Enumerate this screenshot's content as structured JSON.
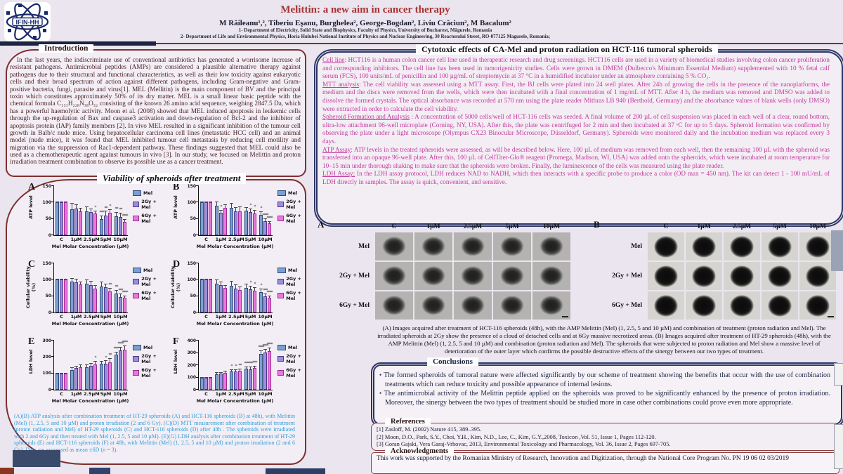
{
  "header": {
    "logo_text": "IFIN-HH",
    "title": "Melittin: a new aim in cancer therapy",
    "authors": "M Răileanu¹,², Tiberiu Eşanu, Burghelea², George-Bogdan², Liviu Crăciun², M Bacalum²",
    "affiliation1": "1- Department of Electricity, Solid State and Biophysics, Faculty of Physics, University of Bucharest, Măgurele, Romania",
    "affiliation2": "2- Department of Life and Environmental Physics, Horia Hulubei National Institute of Physics and Nuclear Engineering, 30 Reactorului Street, RO-077125 Magurele, Romania;"
  },
  "introduction": {
    "heading": "Introduction",
    "text": "In the last years, the indiscriminate use of conventional antibiotics has generated a worrisome increase of resistant pathogens. Antimicrobial peptides (AMPs) are considered a plausible alternative therapy against pathogens due to their structural and functional characteristics, as well as their low toxicity against eukaryotic cells and their broad spectrum of action against different pathogens, including Gram-negative and Gram-positive bacteria, fungi, parasite and virus[1]. MEL (Mellitin) is the main component of BV and the principal toxin which constitutes approximately 50% of its dry matter. MEL is a small linear basic peptide with the chemical formula C₁₃₁H₂₂₈N₃₈O₃₂ consisting of the known 26 amino acid sequence, weighing 2847.5 Da, which has a powerful haemolytic activity. Moon et al. (2008) showed that MEL induced apoptosis in leukemic cells through the up-regulation of Bax and caspase3 activation and down-regulation of Bcl-2 and the inhibitor of apoptosis protein (IAP) family members [2]. In vivo MEL resulted in a significant inhibition of the tumour cell growth in Balb/c nude mice. Using hepatocellular carcinoma cell lines (metastatic HCC cell) and an animal model (nude mice), it was found that MEL inhibited tumour cell metastasis by reducing cell motility and migration via the suppression of Rac1-dependent pathway. These findings suggested that MEL could also be used as a chemotherapeutic agent against tumours in vivo [3]. In our study, we focused on Melittin and proton irradiation treatment combination to observe its possible use as a cancer treatment."
  },
  "viability": {
    "heading": "Viability of spheroids after treatment",
    "caption": "(A)(B) ATP analysis after combination treatment of HT-29 spheroids (A) and HCT-116 spheroids (B) at 48h), with Melittin (Mel) (1, 2.5, 5 and 10 µM) and proton irradiation (2 and 6 Gy). (C)(D) MTT measurement after combination of treatment (proton radiation and Mel) of HT-29 spheroids (C) and HCT-116 spheroids (D) after 48h . The spheroids were irradiated with 2 and 6Gy and then treated with Mel (1, 2.5, 5 and 10 µM). (E)(G) LDH analysis after combination treatment of HT-29 spheroids (E) and HCT-116 spheroids (F) at 48h, with Melittin (Mel) (1, 2.5, 5 and 10 µM) and proton irradiation (2 and 6 Gy). Data are expressed as mean ±SD (n = 3)."
  },
  "chart_data": [
    {
      "letter": "A",
      "type": "bar",
      "ylabel": "ATP level",
      "xlabel": "Mel Molar Concentration (µM)",
      "categories": [
        "C",
        "1µM",
        "2.5µM",
        "5µM",
        "10µM"
      ],
      "ylim": [
        0,
        150
      ],
      "yticks": [
        0,
        50,
        100,
        150
      ],
      "series": [
        {
          "name": "Mel",
          "values": [
            100,
            80,
            74,
            50,
            58
          ],
          "err": [
            2,
            19,
            14,
            10,
            13
          ],
          "sig": [
            "",
            "",
            "",
            "***",
            "**"
          ]
        },
        {
          "name": "2Gy + Mel",
          "values": [
            100,
            82,
            70,
            61,
            55
          ],
          "err": [
            2,
            12,
            12,
            13,
            14
          ],
          "sig": [
            "",
            "",
            "",
            "**",
            "**"
          ]
        },
        {
          "name": "6Gy + Mel",
          "values": [
            100,
            74,
            67,
            68,
            41
          ],
          "err": [
            2,
            10,
            9,
            12,
            8
          ],
          "sig": [
            "",
            "",
            "*",
            "*",
            "****"
          ]
        }
      ]
    },
    {
      "letter": "B",
      "type": "bar",
      "ylabel": "ATP level",
      "xlabel": "Mel Molar Concentration (µM)",
      "categories": [
        "C",
        "1µM",
        "2.5µM",
        "5µM",
        "10µM"
      ],
      "ylim": [
        0,
        150
      ],
      "yticks": [
        0,
        50,
        100,
        150
      ],
      "series": [
        {
          "name": "Mel",
          "values": [
            100,
            90,
            83,
            75,
            63
          ],
          "err": [
            2,
            14,
            16,
            10,
            9
          ],
          "sig": [
            "",
            "",
            "",
            "",
            "*"
          ]
        },
        {
          "name": "2Gy + Mel",
          "values": [
            100,
            68,
            74,
            71,
            43
          ],
          "err": [
            2,
            10,
            12,
            10,
            8
          ],
          "sig": [
            "",
            "*",
            "",
            "*",
            "****"
          ]
        },
        {
          "name": "6Gy + Mel",
          "values": [
            100,
            83,
            73,
            66,
            36
          ],
          "err": [
            2,
            12,
            14,
            12,
            8
          ],
          "sig": [
            "",
            "",
            "",
            "*",
            "****"
          ]
        }
      ]
    },
    {
      "letter": "C",
      "type": "bar",
      "ylabel": "Cellular viability (%)",
      "xlabel": "Mel Molar Concentration (µM)",
      "categories": [
        "C",
        "1µM",
        "2.5µM",
        "5µM",
        "10µM"
      ],
      "ylim": [
        0,
        150
      ],
      "yticks": [
        0,
        50,
        100,
        150
      ],
      "series": [
        {
          "name": "Mel",
          "values": [
            100,
            94,
            89,
            80,
            58
          ],
          "err": [
            2,
            12,
            11,
            15,
            10
          ],
          "sig": [
            "",
            "",
            "",
            "",
            "**"
          ]
        },
        {
          "name": "2Gy + Mel",
          "values": [
            100,
            92,
            84,
            77,
            48
          ],
          "err": [
            2,
            10,
            12,
            12,
            9
          ],
          "sig": [
            "",
            "",
            "",
            "",
            "***"
          ]
        },
        {
          "name": "6Gy + Mel",
          "values": [
            100,
            85,
            73,
            64,
            45
          ],
          "err": [
            2,
            10,
            10,
            12,
            7
          ],
          "sig": [
            "",
            "",
            "",
            "**",
            "****"
          ]
        }
      ]
    },
    {
      "letter": "D",
      "type": "bar",
      "ylabel": "Cellular viability (%)",
      "xlabel": "Mel Molar Concentration (µM)",
      "categories": [
        "C",
        "1µM",
        "2.5µM",
        "5µM",
        "10µM"
      ],
      "ylim": [
        0,
        150
      ],
      "yticks": [
        0,
        50,
        100,
        150
      ],
      "series": [
        {
          "name": "Mel",
          "values": [
            100,
            87,
            81,
            75,
            63
          ],
          "err": [
            2,
            14,
            16,
            14,
            9
          ],
          "sig": [
            "",
            "",
            "",
            "",
            "*"
          ]
        },
        {
          "name": "2Gy + Mel",
          "values": [
            100,
            84,
            74,
            71,
            49
          ],
          "err": [
            2,
            10,
            11,
            11,
            8
          ],
          "sig": [
            "",
            "",
            "",
            "*",
            "***"
          ]
        },
        {
          "name": "6Gy + Mel",
          "values": [
            100,
            75,
            69,
            67,
            45
          ],
          "err": [
            2,
            9,
            10,
            11,
            7
          ],
          "sig": [
            "",
            "",
            "",
            "*",
            "****"
          ]
        }
      ]
    },
    {
      "letter": "E",
      "type": "bar",
      "ylabel": "LDH level",
      "xlabel": "Mel Molar Concentration (µM)",
      "categories": [
        "C",
        "1µM",
        "2.5µM",
        "5µM",
        "10µM"
      ],
      "ylim": [
        0,
        300
      ],
      "yticks": [
        0,
        100,
        200,
        300
      ],
      "series": [
        {
          "name": "Mel",
          "values": [
            100,
            122,
            138,
            157,
            213
          ],
          "err": [
            3,
            14,
            16,
            18,
            20
          ],
          "sig": [
            "",
            "",
            "",
            "",
            "****"
          ]
        },
        {
          "name": "2Gy + Mel",
          "values": [
            100,
            132,
            147,
            158,
            240
          ],
          "err": [
            3,
            15,
            18,
            20,
            22
          ],
          "sig": [
            "",
            "",
            "",
            "*",
            "****"
          ]
        },
        {
          "name": "6Gy + Mel",
          "values": [
            100,
            138,
            155,
            168,
            245
          ],
          "err": [
            3,
            18,
            20,
            25,
            24
          ],
          "sig": [
            "",
            "",
            "*",
            "**",
            "****"
          ]
        }
      ]
    },
    {
      "letter": "F",
      "type": "bar",
      "ylabel": "LDH level",
      "xlabel": "Mel Molar Concentration (µM)",
      "categories": [
        "C",
        "1µM",
        "2.5µM",
        "5µM",
        "10µM"
      ],
      "ylim": [
        0,
        400
      ],
      "yticks": [
        0,
        100,
        200,
        300,
        400
      ],
      "series": [
        {
          "name": "Mel",
          "values": [
            100,
            127,
            148,
            170,
            293
          ],
          "err": [
            3,
            14,
            16,
            18,
            25
          ],
          "sig": [
            "",
            "",
            "*",
            "***",
            "****"
          ]
        },
        {
          "name": "2Gy + Mel",
          "values": [
            100,
            130,
            150,
            168,
            305
          ],
          "err": [
            3,
            15,
            17,
            19,
            26
          ],
          "sig": [
            "",
            "",
            "*",
            "***",
            "****"
          ]
        },
        {
          "name": "6Gy + Mel",
          "values": [
            100,
            140,
            155,
            175,
            315
          ],
          "err": [
            3,
            16,
            18,
            20,
            28
          ],
          "sig": [
            "",
            "",
            "**",
            "***",
            "****"
          ]
        }
      ]
    }
  ],
  "cytotoxic": {
    "heading": "Cytotoxic effects of CA-Mel and proton radiation on HCT-116 tumoral spheroids",
    "paragraphs": [
      {
        "lead": "Cell line",
        "text": ": HCT116 is a human colon cancer cell line used in therapeutic research and drug screenings. HCT116 cells are used in a variety of biomedical studies involving colon cancer proliferation and corresponding inhibitors. The cell line has been used in tumorigenicity studies. Cells were grown in DMEM (Dulbecco's Minimum Essential Medium) supplemented with 10 % fetal calf serum (FCS), 100 units/mL of penicillin and 100 µg/mL of streptomycin at 37 °C in a humidified incubator under an atmosphere containing 5 % CO₂."
      },
      {
        "lead": "MTT analysis",
        "text": ": The cell viability was assessed using a MTT assay. First, the BJ cells were plated into 24 well plates. After 24h of growing the cells in the presence of the nanoplatforms, the medium and the discs were removed from the wells, which were then incubated with a final concentration of 1 mg/mL of MTT. After 4 h, the medium was removed and DMSO was added to dissolve the formed crystals. The optical absorbance was recorded at 570 nm using the plate reader Mithras LB 940 (Berthold, Germany) and the absorbance values of blank wells (only DMSO) were extracted in order to calculate the cell viability."
      },
      {
        "lead": "Spheroid Formation and Analysis",
        "text": " : A concentration of 5000 cells/well of HCT-116 cells was seeded. A final volume of 200 µL of cell suspension was placed in each well of a clear, round bottom, ultra-low attachment 96-well microplate (Corning, NY, USA). After this, the plate was centrifuged for 2 min and then incubated at 37 ᵒC for up to 5 days. Spheroid formation was confirmed by observing the plate under a light microscope (Olympus CX23 Binocular Microscope, Düsseldorf, Germany). Spheroids were monitored daily and the incubation medium was replaced every 3 days."
      },
      {
        "lead": "ATP Assay",
        "text": ": ATP levels in the treated spheroids were assessed, as will be described below. Here, 100 µL of medium was removed from each well, then the remaining 100 µL with the spheroid was transferred into an opaque 96-well plate. After this, 100 µL of CellTiter-Glo® reagent (Promega, Madison, WI, USA) was added onto the spheroids, which were incubated at room temperature for 10–15 min under thorough shaking to make sure that the spheroids were broken. Finally, the luminescence of the cells was measured using the plate reader."
      },
      {
        "lead": "LDH Assay:",
        "text": " In the LDH assay protocol, LDH reduces NAD to NADH, which then interacts with a specific probe to produce a color (OD max = 450 nm). The kit can detect 1 - 100 mU/mL of LDH directly in samples. The assay is quick, convenient, and sensitive."
      }
    ]
  },
  "spheroids": {
    "panel_a_label": "A",
    "panel_b_label": "B",
    "col_headers": [
      "C",
      "1µM",
      "2.5µM",
      "5µM",
      "10µM"
    ],
    "row_labels": [
      "Mel",
      "2Gy + Mel",
      "6Gy + Mel"
    ],
    "caption": "(A) Images acquired after treatment of HCT-116 spheroids (48h), with the AMP Melittin (Mel) (1, 2.5, 5 and 10 µM) and combination of treatment (proton radiation and Mel). The irradiated spheroids at 2Gy show the presence of a cloud of detached cells and at 6Gy massive necrotized areas. (B) Images acquired after treatment of HT-29 spheroids (48h), with the AMP Melittin (Mel) (1, 2.5, 5 and 10 µM) and combination (proton radiation and Mel). The spheroids that were subjected to proton radiation and Mel show a massive level of deterioration of the outer layer which confirms the possible destructive effects of the sinergy between our two types of treatment."
  },
  "conclusions": {
    "heading": "Conclusions",
    "bullets": [
      "The formed spheroids of tumoral nature were affected significantly by our scheme of treatment showing the benefits that occur with the use of combination treatments which can reduce toxicity and possible appearance of internal lesions.",
      "The antimicrobial activity of the Melittin peptide applied on the spheroids was proved to be significantly enhanced by the presence of proton irradiation. Moreover, the sinergy between the two types of treatment should be studied more in case other combinations could prove even more appropriate."
    ]
  },
  "references": {
    "heading": "References",
    "items": [
      "[1] Zasloff, M. (2002) Nature 415, 389–395.",
      "[2] Moon, D.O., Park, S.Y., Choi, Y.H., Kim, N.D., Lee, C., Kim, G.Y.,2008, Toxicon ,Vol. 51, Issue 1, Pages 112-120.",
      "[3] Goran Gajski, Vera Garaj-Vrhovac, 2013, Environmental Toxicology and Pharmacology, Vol. 36, Issue 2, Pages 697-705."
    ]
  },
  "acknowledgments": {
    "heading": "Acknowledgments",
    "text": "This work was supported by the Romanian Ministry of Research, Innovation and Digitization, through the National Core Program No. PN 19 06 02 03/2019"
  },
  "colors": {
    "accent_maroon": "#7e2f2f",
    "accent_navy": "#2b3566",
    "title_red": "#a83232",
    "body_pink": "#c4399f",
    "caption_blue": "#2f9fd8",
    "series": [
      "#7b9fd1",
      "#9c8ede",
      "#e878dc"
    ],
    "series_border": [
      "#2e4a7a",
      "#4a3a8a",
      "#a02a96"
    ]
  }
}
